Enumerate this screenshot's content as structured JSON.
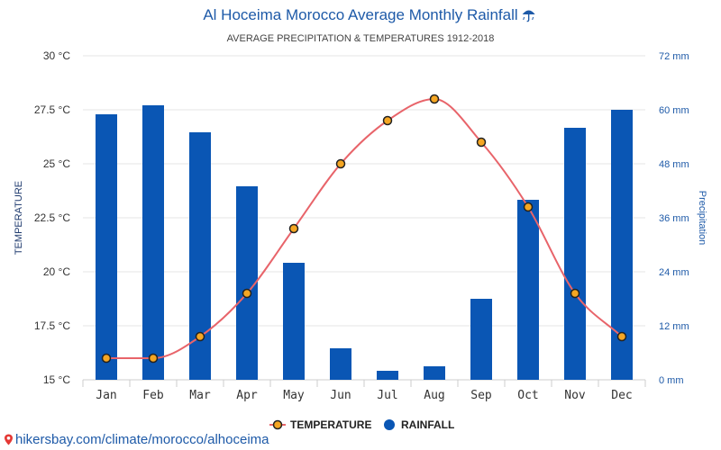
{
  "chart_data": {
    "type": "bar+line",
    "title": "Al Hoceima Morocco Average Monthly Rainfall",
    "title_icon": "umbrella-rain-icon",
    "subtitle": "AVERAGE PRECIPITATION & TEMPERATURES 1912-2018",
    "categories": [
      "Jan",
      "Feb",
      "Mar",
      "Apr",
      "May",
      "Jun",
      "Jul",
      "Aug",
      "Sep",
      "Oct",
      "Nov",
      "Dec"
    ],
    "temperature": {
      "name": "TEMPERATURE",
      "values": [
        16,
        16,
        17,
        19,
        22,
        25,
        27,
        28,
        26,
        23,
        19,
        17
      ],
      "color": "#e8646a",
      "marker_fill": "#f5a623"
    },
    "rainfall": {
      "name": "RAINFALL",
      "values": [
        59,
        61,
        55,
        43,
        26,
        7,
        2,
        3,
        18,
        40,
        56,
        60
      ],
      "color": "#0a56b4"
    },
    "left_axis": {
      "label": "TEMPERATURE",
      "ylim": [
        15,
        30
      ],
      "ticks": [
        "15 °C",
        "17.5 °C",
        "20 °C",
        "22.5 °C",
        "25 °C",
        "27.5 °C",
        "30 °C"
      ]
    },
    "right_axis": {
      "label": "Precipitation",
      "ylim": [
        0,
        72
      ],
      "ticks": [
        "0 mm",
        "12 mm",
        "24 mm",
        "36 mm",
        "48 mm",
        "60 mm",
        "72 mm"
      ]
    },
    "grid": true,
    "legend_position": "bottom-center"
  },
  "footer": {
    "url": "hikersbay.com/climate/morocco/alhoceima",
    "icon": "location-pin-icon"
  }
}
